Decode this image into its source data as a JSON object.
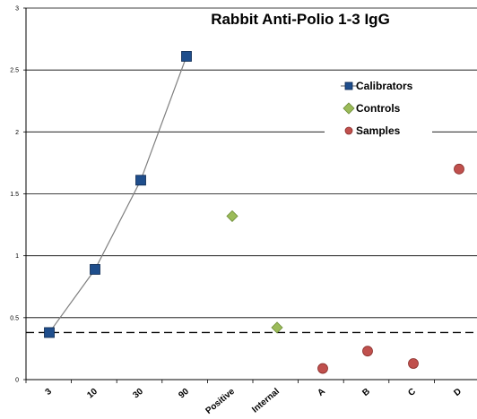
{
  "chart_data": {
    "type": "scatter",
    "title": "Rabbit Anti-Polio 1-3 IgG",
    "categories": [
      "3",
      "10",
      "30",
      "90",
      "Positive",
      "Internal",
      "A",
      "B",
      "C",
      "D"
    ],
    "y_ticks": [
      "0",
      "0.5",
      "1",
      "1.5",
      "2",
      "2.5",
      "3"
    ],
    "ylim": [
      0,
      3
    ],
    "grid": "horizontal",
    "legend_position": "right",
    "threshold": 0.38,
    "series": [
      {
        "name": "Calibrators",
        "marker": "square",
        "color": "#1f4e8c",
        "connected": true,
        "points": [
          {
            "category": "3",
            "value": 0.38
          },
          {
            "category": "10",
            "value": 0.89
          },
          {
            "category": "30",
            "value": 1.61
          },
          {
            "category": "90",
            "value": 2.61
          }
        ]
      },
      {
        "name": "Controls",
        "marker": "diamond",
        "color": "#9bbb59",
        "points": [
          {
            "category": "Positive",
            "value": 1.32
          },
          {
            "category": "Internal",
            "value": 0.42
          }
        ]
      },
      {
        "name": "Samples",
        "marker": "circle",
        "color": "#c0504d",
        "points": [
          {
            "category": "A",
            "value": 0.09
          },
          {
            "category": "B",
            "value": 0.23
          },
          {
            "category": "C",
            "value": 0.13
          },
          {
            "category": "D",
            "value": 1.7
          }
        ]
      }
    ]
  }
}
